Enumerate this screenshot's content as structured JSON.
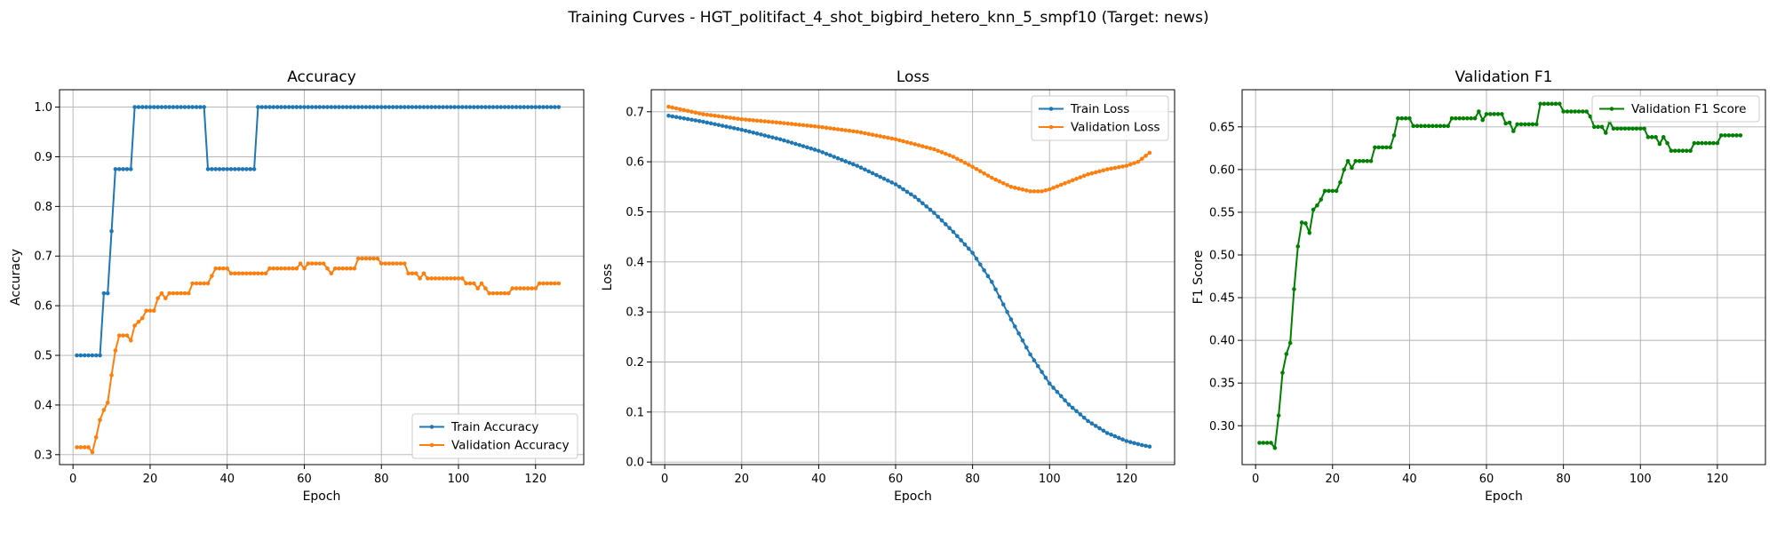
{
  "figure": {
    "suptitle": "Training Curves - HGT_politifact_4_shot_bigbird_hetero_knn_5_smpf10 (Target: news)"
  },
  "colors": {
    "blue": "#1f77b4",
    "orange": "#ff7f0e",
    "green": "#008000",
    "grid": "#b0b0b0"
  },
  "chart_data": [
    {
      "type": "line",
      "title": "Accuracy",
      "xlabel": "Epoch",
      "ylabel": "Accuracy",
      "xlim": [
        -3.5,
        132.5
      ],
      "ylim": [
        0.28,
        1.035
      ],
      "xticks": [
        0,
        20,
        40,
        60,
        80,
        100,
        120
      ],
      "yticks": [
        0.3,
        0.4,
        0.5,
        0.6,
        0.7,
        0.8,
        0.9,
        1.0
      ],
      "ytick_labels": [
        "0.3",
        "0.4",
        "0.5",
        "0.6",
        "0.7",
        "0.8",
        "0.9",
        "1.0"
      ],
      "grid": true,
      "legend_position": "lower-right",
      "series": [
        {
          "name": "Train Accuracy",
          "color": "#1f77b4",
          "segments": [
            [
              1,
              0.5
            ],
            [
              7,
              0.5
            ],
            [
              8,
              0.625
            ],
            [
              9,
              0.625
            ],
            [
              10,
              0.75
            ],
            [
              11,
              0.875
            ],
            [
              15,
              0.875
            ],
            [
              16,
              1.0
            ],
            [
              34,
              1.0
            ],
            [
              35,
              0.875
            ],
            [
              47,
              0.875
            ],
            [
              48,
              1.0
            ],
            [
              126,
              1.0
            ]
          ]
        },
        {
          "name": "Validation Accuracy",
          "color": "#ff7f0e",
          "segments": [
            [
              1,
              0.315
            ],
            [
              4,
              0.315
            ],
            [
              5,
              0.305
            ],
            [
              6,
              0.335
            ],
            [
              7,
              0.37
            ],
            [
              8,
              0.39
            ],
            [
              9,
              0.405
            ],
            [
              10,
              0.46
            ],
            [
              11,
              0.51
            ],
            [
              12,
              0.54
            ],
            [
              14,
              0.54
            ],
            [
              15,
              0.53
            ],
            [
              16,
              0.56
            ],
            [
              18,
              0.575
            ],
            [
              19,
              0.59
            ],
            [
              21,
              0.59
            ],
            [
              22,
              0.615
            ],
            [
              23,
              0.625
            ],
            [
              24,
              0.615
            ],
            [
              25,
              0.625
            ],
            [
              30,
              0.625
            ],
            [
              31,
              0.645
            ],
            [
              35,
              0.645
            ],
            [
              36,
              0.66
            ],
            [
              37,
              0.675
            ],
            [
              40,
              0.675
            ],
            [
              41,
              0.665
            ],
            [
              50,
              0.665
            ],
            [
              51,
              0.675
            ],
            [
              58,
              0.675
            ],
            [
              59,
              0.685
            ],
            [
              60,
              0.675
            ],
            [
              61,
              0.685
            ],
            [
              65,
              0.685
            ],
            [
              66,
              0.675
            ],
            [
              67,
              0.665
            ],
            [
              68,
              0.675
            ],
            [
              73,
              0.675
            ],
            [
              74,
              0.695
            ],
            [
              79,
              0.695
            ],
            [
              80,
              0.685
            ],
            [
              86,
              0.685
            ],
            [
              87,
              0.665
            ],
            [
              89,
              0.665
            ],
            [
              90,
              0.655
            ],
            [
              91,
              0.665
            ],
            [
              92,
              0.655
            ],
            [
              101,
              0.655
            ],
            [
              102,
              0.645
            ],
            [
              104,
              0.645
            ],
            [
              105,
              0.635
            ],
            [
              106,
              0.645
            ],
            [
              107,
              0.635
            ],
            [
              108,
              0.625
            ],
            [
              113,
              0.625
            ],
            [
              114,
              0.635
            ],
            [
              120,
              0.635
            ],
            [
              121,
              0.645
            ],
            [
              126,
              0.645
            ]
          ]
        }
      ]
    },
    {
      "type": "line",
      "title": "Loss",
      "xlabel": "Epoch",
      "ylabel": "Loss",
      "xlim": [
        -3.5,
        132.5
      ],
      "ylim": [
        -0.005,
        0.744
      ],
      "xticks": [
        0,
        20,
        40,
        60,
        80,
        100,
        120
      ],
      "yticks": [
        0.0,
        0.1,
        0.2,
        0.3,
        0.4,
        0.5,
        0.6,
        0.7
      ],
      "ytick_labels": [
        "0.0",
        "0.1",
        "0.2",
        "0.3",
        "0.4",
        "0.5",
        "0.6",
        "0.7"
      ],
      "grid": true,
      "legend_position": "upper-right",
      "series": [
        {
          "name": "Train Loss",
          "color": "#1f77b4",
          "segments": [
            [
              1,
              0.692
            ],
            [
              10,
              0.68
            ],
            [
              20,
              0.664
            ],
            [
              30,
              0.645
            ],
            [
              40,
              0.622
            ],
            [
              50,
              0.592
            ],
            [
              60,
              0.555
            ],
            [
              65,
              0.53
            ],
            [
              70,
              0.498
            ],
            [
              75,
              0.46
            ],
            [
              80,
              0.418
            ],
            [
              85,
              0.36
            ],
            [
              90,
              0.285
            ],
            [
              95,
              0.215
            ],
            [
              100,
              0.157
            ],
            [
              105,
              0.115
            ],
            [
              110,
              0.082
            ],
            [
              115,
              0.058
            ],
            [
              120,
              0.042
            ],
            [
              124,
              0.034
            ],
            [
              126,
              0.031
            ]
          ]
        },
        {
          "name": "Validation Loss",
          "color": "#ff7f0e",
          "segments": [
            [
              1,
              0.71
            ],
            [
              10,
              0.695
            ],
            [
              20,
              0.685
            ],
            [
              30,
              0.678
            ],
            [
              40,
              0.67
            ],
            [
              50,
              0.66
            ],
            [
              60,
              0.645
            ],
            [
              70,
              0.625
            ],
            [
              75,
              0.61
            ],
            [
              80,
              0.59
            ],
            [
              85,
              0.568
            ],
            [
              90,
              0.55
            ],
            [
              95,
              0.541
            ],
            [
              98,
              0.541
            ],
            [
              100,
              0.545
            ],
            [
              105,
              0.56
            ],
            [
              110,
              0.575
            ],
            [
              115,
              0.585
            ],
            [
              120,
              0.592
            ],
            [
              123,
              0.6
            ],
            [
              126,
              0.618
            ]
          ]
        }
      ]
    },
    {
      "type": "line",
      "title": "Validation F1",
      "xlabel": "Epoch",
      "ylabel": "F1 Score",
      "xlim": [
        -3.5,
        132.5
      ],
      "ylim": [
        0.2545,
        0.6935
      ],
      "xticks": [
        0,
        20,
        40,
        60,
        80,
        100,
        120
      ],
      "yticks": [
        0.3,
        0.35,
        0.4,
        0.45,
        0.5,
        0.55,
        0.6,
        0.65
      ],
      "ytick_labels": [
        "0.30",
        "0.35",
        "0.40",
        "0.45",
        "0.50",
        "0.55",
        "0.60",
        "0.65"
      ],
      "grid": true,
      "legend_position": "upper-right",
      "series": [
        {
          "name": "Validation F1 Score",
          "color": "#008000",
          "segments": [
            [
              1,
              0.28
            ],
            [
              4,
              0.28
            ],
            [
              5,
              0.274
            ],
            [
              6,
              0.312
            ],
            [
              7,
              0.362
            ],
            [
              8,
              0.384
            ],
            [
              9,
              0.397
            ],
            [
              10,
              0.46
            ],
            [
              11,
              0.51
            ],
            [
              12,
              0.538
            ],
            [
              13,
              0.537
            ],
            [
              14,
              0.526
            ],
            [
              15,
              0.553
            ],
            [
              16,
              0.558
            ],
            [
              17,
              0.565
            ],
            [
              18,
              0.575
            ],
            [
              21,
              0.575
            ],
            [
              22,
              0.585
            ],
            [
              23,
              0.6
            ],
            [
              24,
              0.61
            ],
            [
              25,
              0.602
            ],
            [
              26,
              0.61
            ],
            [
              30,
              0.61
            ],
            [
              31,
              0.626
            ],
            [
              35,
              0.626
            ],
            [
              36,
              0.64
            ],
            [
              37,
              0.66
            ],
            [
              40,
              0.66
            ],
            [
              41,
              0.651
            ],
            [
              50,
              0.651
            ],
            [
              51,
              0.66
            ],
            [
              57,
              0.66
            ],
            [
              58,
              0.668
            ],
            [
              59,
              0.658
            ],
            [
              60,
              0.665
            ],
            [
              64,
              0.665
            ],
            [
              65,
              0.654
            ],
            [
              66,
              0.655
            ],
            [
              67,
              0.645
            ],
            [
              68,
              0.653
            ],
            [
              73,
              0.653
            ],
            [
              74,
              0.677
            ],
            [
              79,
              0.677
            ],
            [
              80,
              0.668
            ],
            [
              86,
              0.668
            ],
            [
              87,
              0.662
            ],
            [
              88,
              0.65
            ],
            [
              90,
              0.65
            ],
            [
              91,
              0.643
            ],
            [
              92,
              0.656
            ],
            [
              93,
              0.648
            ],
            [
              101,
              0.648
            ],
            [
              102,
              0.638
            ],
            [
              104,
              0.638
            ],
            [
              105,
              0.63
            ],
            [
              106,
              0.638
            ],
            [
              107,
              0.631
            ],
            [
              108,
              0.622
            ],
            [
              113,
              0.622
            ],
            [
              114,
              0.631
            ],
            [
              120,
              0.631
            ],
            [
              121,
              0.64
            ],
            [
              126,
              0.64
            ]
          ]
        }
      ]
    }
  ]
}
